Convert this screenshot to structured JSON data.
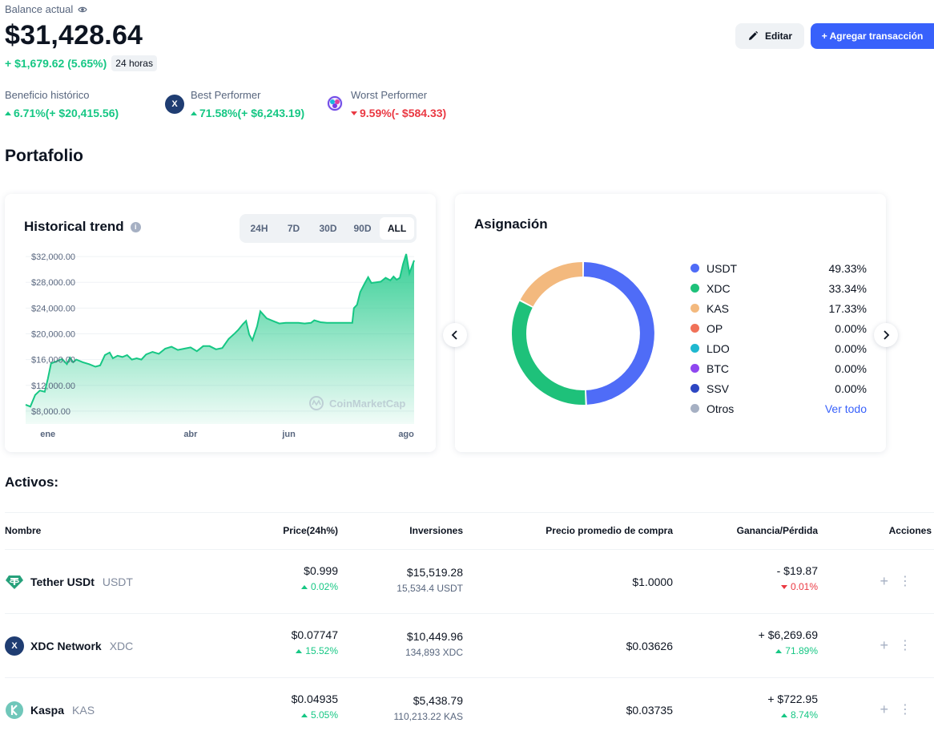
{
  "header": {
    "balance_label": "Balance actual",
    "balance": "$31,428.64",
    "change": "+ $1,679.62 (5.65%)",
    "change_period": "24 horas",
    "edit_label": "Editar",
    "add_label": "+ Agregar transacción"
  },
  "stats": [
    {
      "label": "Beneficio histórico",
      "value": "6.71%(+ $20,415.56)"
    },
    {
      "label": "Best Performer",
      "value": "71.58%(+ $6,243.19)"
    },
    {
      "label": "Worst Performer",
      "value": "9.59%(- $584.33)"
    }
  ],
  "portfolio_title": "Portafolio",
  "trend": {
    "title": "Historical trend",
    "ranges": [
      "24H",
      "7D",
      "30D",
      "90D",
      "ALL"
    ],
    "active_range": "ALL",
    "watermark": "CoinMarketCap"
  },
  "chart_data": {
    "type": "area",
    "title": "Historical trend",
    "ylim": [
      6000,
      34000
    ],
    "y_ticks": [
      "$32,000.00",
      "$28,000.00",
      "$24,000.00",
      "$20,000.00",
      "$16,000.00",
      "$12,000.00",
      "$8,000.00"
    ],
    "x_ticks": [
      "ene",
      "abr",
      "jun",
      "ago"
    ],
    "x_tick_days": [
      14,
      104,
      166,
      240
    ],
    "x_range_days": [
      0,
      245
    ],
    "series": [
      {
        "values": [
          [
            0,
            9000
          ],
          [
            3,
            8700
          ],
          [
            6,
            10500
          ],
          [
            9,
            11200
          ],
          [
            12,
            11000
          ],
          [
            14,
            13000
          ],
          [
            16,
            15400
          ],
          [
            20,
            15800
          ],
          [
            23,
            16100
          ],
          [
            26,
            15300
          ],
          [
            28,
            16300
          ],
          [
            30,
            15600
          ],
          [
            32,
            16000
          ],
          [
            36,
            15600
          ],
          [
            40,
            15300
          ],
          [
            44,
            14900
          ],
          [
            47,
            15100
          ],
          [
            50,
            16700
          ],
          [
            53,
            17100
          ],
          [
            55,
            16200
          ],
          [
            58,
            16600
          ],
          [
            61,
            16400
          ],
          [
            64,
            16700
          ],
          [
            67,
            16000
          ],
          [
            70,
            16200
          ],
          [
            73,
            16000
          ],
          [
            76,
            16800
          ],
          [
            80,
            17200
          ],
          [
            84,
            16900
          ],
          [
            88,
            17700
          ],
          [
            92,
            18000
          ],
          [
            96,
            17500
          ],
          [
            100,
            17700
          ],
          [
            104,
            17900
          ],
          [
            108,
            17300
          ],
          [
            112,
            18100
          ],
          [
            116,
            18100
          ],
          [
            120,
            17600
          ],
          [
            124,
            17800
          ],
          [
            128,
            19200
          ],
          [
            132,
            20100
          ],
          [
            134,
            20600
          ],
          [
            137,
            21500
          ],
          [
            139,
            22000
          ],
          [
            141,
            19900
          ],
          [
            143,
            19000
          ],
          [
            146,
            21200
          ],
          [
            148,
            23500
          ],
          [
            152,
            22400
          ],
          [
            156,
            22000
          ],
          [
            160,
            21600
          ],
          [
            164,
            21700
          ],
          [
            168,
            21700
          ],
          [
            172,
            21700
          ],
          [
            176,
            21600
          ],
          [
            180,
            21700
          ],
          [
            182,
            22100
          ],
          [
            186,
            21800
          ],
          [
            190,
            21700
          ],
          [
            194,
            21700
          ],
          [
            198,
            21700
          ],
          [
            202,
            21700
          ],
          [
            206,
            21700
          ],
          [
            207,
            24000
          ],
          [
            209,
            24500
          ],
          [
            211,
            26500
          ],
          [
            214,
            27900
          ],
          [
            216,
            28800
          ],
          [
            218,
            27900
          ],
          [
            221,
            28000
          ],
          [
            224,
            28100
          ],
          [
            227,
            28700
          ],
          [
            230,
            28300
          ],
          [
            232,
            28900
          ],
          [
            234,
            28400
          ],
          [
            236,
            28700
          ],
          [
            238,
            30800
          ],
          [
            240,
            32400
          ],
          [
            242,
            29400
          ],
          [
            245,
            31400
          ]
        ]
      }
    ]
  },
  "allocation": {
    "title": "Asignación",
    "items": [
      {
        "name": "USDT",
        "pct": "49.33%",
        "value": 49.33,
        "color": "#4f6cf7"
      },
      {
        "name": "XDC",
        "pct": "33.34%",
        "value": 33.34,
        "color": "#1ec17a"
      },
      {
        "name": "KAS",
        "pct": "17.33%",
        "value": 17.33,
        "color": "#f3b97e"
      },
      {
        "name": "OP",
        "pct": "0.00%",
        "value": 0,
        "color": "#f07158"
      },
      {
        "name": "LDO",
        "pct": "0.00%",
        "value": 0,
        "color": "#1fb8cf"
      },
      {
        "name": "BTC",
        "pct": "0.00%",
        "value": 0,
        "color": "#8f47f0"
      },
      {
        "name": "SSV",
        "pct": "0.00%",
        "value": 0,
        "color": "#2d46c2"
      }
    ],
    "others": {
      "name": "Otros",
      "color": "#a6b0c3",
      "link": "Ver todo"
    }
  },
  "assets": {
    "title": "Activos:",
    "columns": [
      "Nombre",
      "Price(24h%)",
      "Inversiones",
      "Precio promedio de compra",
      "Ganancia/Pérdida",
      "Acciones"
    ],
    "rows": [
      {
        "name": "Tether USDt",
        "symbol": "USDT",
        "price": "$0.999",
        "price_change": "0.02%",
        "price_dir": "up",
        "investment": "$15,519.28",
        "holdings": "15,534.4 USDT",
        "avg_price": "$1.0000",
        "pnl": "- $19.87",
        "pnl_pct": "0.01%",
        "pnl_dir": "down",
        "icon": "tether-icon"
      },
      {
        "name": "XDC Network",
        "symbol": "XDC",
        "price": "$0.07747",
        "price_change": "15.52%",
        "price_dir": "up",
        "investment": "$10,449.96",
        "holdings": "134,893 XDC",
        "avg_price": "$0.03626",
        "pnl": "+ $6,269.69",
        "pnl_pct": "71.89%",
        "pnl_dir": "up",
        "icon": "xdc-icon"
      },
      {
        "name": "Kaspa",
        "symbol": "KAS",
        "price": "$0.04935",
        "price_change": "5.05%",
        "price_dir": "up",
        "investment": "$5,438.79",
        "holdings": "110,213.22 KAS",
        "avg_price": "$0.03735",
        "pnl": "+ $722.95",
        "pnl_pct": "8.74%",
        "pnl_dir": "up",
        "icon": "kaspa-icon"
      }
    ]
  }
}
